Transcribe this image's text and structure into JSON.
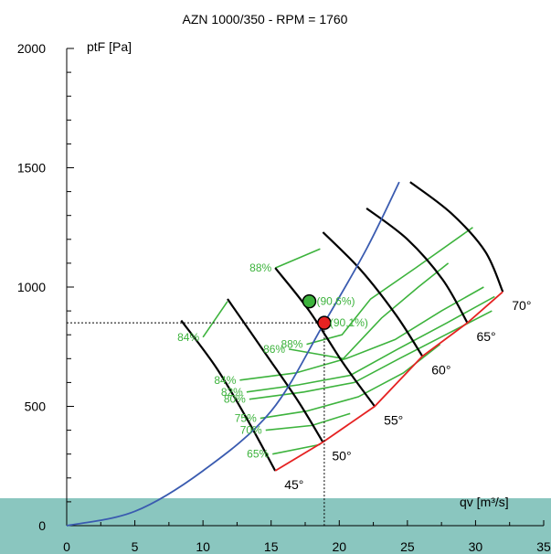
{
  "chart_data": {
    "type": "line",
    "title": "AZN 1000/350 - RPM = 1760",
    "xlabel": "qv [m³/s]",
    "ylabel": "ptF [Pa]",
    "xlim": [
      0,
      35
    ],
    "ylim": [
      0,
      2000
    ],
    "x_ticks": [
      "0",
      "5",
      "10",
      "15",
      "20",
      "25",
      "30",
      "35"
    ],
    "y_ticks": [
      "0",
      "500",
      "1000",
      "1500",
      "2000"
    ],
    "colors": {
      "fan_curves": "#000000",
      "efficiency": "#3db33d",
      "limit": "#e52222",
      "system": "#3a5bb0",
      "band": "#8ac6bf"
    },
    "series": [
      {
        "label": "45°",
        "points": [
          [
            8.4,
            860
          ],
          [
            11.0,
            660
          ],
          [
            13.4,
            430
          ],
          [
            15.3,
            230
          ]
        ]
      },
      {
        "label": "50°",
        "points": [
          [
            11.8,
            950
          ],
          [
            14.6,
            720
          ],
          [
            17.0,
            520
          ],
          [
            18.8,
            350
          ]
        ]
      },
      {
        "label": "55°",
        "points": [
          [
            15.3,
            1080
          ],
          [
            17.8,
            900
          ],
          [
            20.3,
            680
          ],
          [
            22.6,
            500
          ]
        ]
      },
      {
        "label": "60°",
        "points": [
          [
            18.8,
            1230
          ],
          [
            21.6,
            1070
          ],
          [
            24.2,
            880
          ],
          [
            26.1,
            710
          ]
        ]
      },
      {
        "label": "65°",
        "points": [
          [
            22.0,
            1330
          ],
          [
            25.0,
            1200
          ],
          [
            27.6,
            1030
          ],
          [
            29.4,
            850
          ]
        ]
      },
      {
        "label": "70°",
        "points": [
          [
            25.2,
            1440
          ],
          [
            28.2,
            1310
          ],
          [
            30.7,
            1150
          ],
          [
            32.0,
            980
          ]
        ]
      }
    ],
    "efficiency_lines": [
      {
        "label": "65%",
        "points": [
          [
            15.1,
            300
          ],
          [
            18.6,
            340
          ]
        ]
      },
      {
        "label": "70%",
        "points": [
          [
            14.6,
            400
          ],
          [
            18.0,
            420
          ],
          [
            20.8,
            470
          ]
        ]
      },
      {
        "label": "75%",
        "points": [
          [
            14.2,
            450
          ],
          [
            17.6,
            480
          ],
          [
            21.4,
            540
          ],
          [
            24.7,
            640
          ],
          [
            27.4,
            760
          ]
        ]
      },
      {
        "label": "80%",
        "points": [
          [
            13.4,
            530
          ],
          [
            17.4,
            560
          ],
          [
            21.1,
            600
          ],
          [
            24.4,
            700
          ],
          [
            27.8,
            800
          ],
          [
            31.2,
            900
          ]
        ]
      },
      {
        "label": "82%",
        "points": [
          [
            13.2,
            560
          ],
          [
            17.0,
            590
          ],
          [
            20.8,
            630
          ],
          [
            24.3,
            740
          ],
          [
            27.9,
            850
          ],
          [
            31.4,
            960
          ]
        ]
      },
      {
        "label": "84%",
        "points": [
          [
            12.7,
            610
          ],
          [
            16.8,
            640
          ],
          [
            20.5,
            700
          ],
          [
            24.1,
            780
          ],
          [
            27.5,
            900
          ],
          [
            30.6,
            1000
          ]
        ]
      },
      {
        "label": "84%",
        "points": [
          [
            10.0,
            790
          ],
          [
            11.8,
            940
          ]
        ]
      },
      {
        "label": "86%",
        "points": [
          [
            16.3,
            740
          ],
          [
            20.3,
            700
          ],
          [
            23.1,
            870
          ],
          [
            25.8,
            1000
          ],
          [
            28.0,
            1100
          ]
        ]
      },
      {
        "label": "88%",
        "points": [
          [
            17.6,
            760
          ],
          [
            20.2,
            800
          ],
          [
            22.3,
            950
          ],
          [
            25.6,
            1080
          ],
          [
            29.8,
            1250
          ]
        ]
      },
      {
        "label": "88%",
        "points": [
          [
            15.3,
            1080
          ],
          [
            18.6,
            1160
          ]
        ]
      }
    ],
    "system_curve": [
      [
        0,
        0
      ],
      [
        5,
        60
      ],
      [
        10,
        230
      ],
      [
        15,
        480
      ],
      [
        18.9,
        850
      ],
      [
        22,
        1160
      ],
      [
        24.4,
        1440
      ]
    ],
    "limit_line": [
      [
        15.3,
        230
      ],
      [
        18.8,
        350
      ],
      [
        22.6,
        500
      ],
      [
        26.1,
        710
      ],
      [
        29.4,
        850
      ],
      [
        32.0,
        980
      ]
    ],
    "operating_point": {
      "x": 18.9,
      "y": 850,
      "label": "(90,1%)"
    },
    "best_point": {
      "x": 17.8,
      "y": 940,
      "label": "(90,6%)"
    },
    "grid": false
  }
}
